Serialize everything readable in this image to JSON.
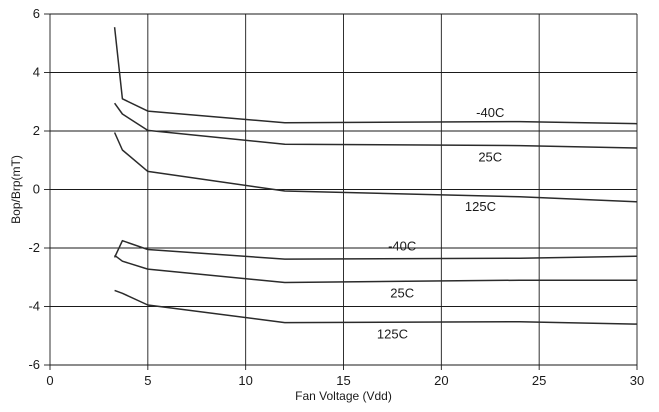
{
  "chart_data": {
    "type": "line",
    "title": "",
    "xlabel": "Fan Voltage (Vdd)",
    "ylabel": "Bop/Brp(mT)",
    "xlim": [
      0,
      30
    ],
    "ylim": [
      -6,
      6
    ],
    "x_ticks": [
      0,
      5,
      10,
      15,
      20,
      25,
      30
    ],
    "y_ticks": [
      -6,
      -4,
      -2,
      0,
      2,
      4,
      6
    ],
    "grid": "vertical and horizontal major gridlines",
    "line_color": "#2b2b2b",
    "grid_color": "#1a1a1a",
    "series": [
      {
        "name": "-40C",
        "x": [
          3.3,
          3.7,
          5,
          12,
          24,
          30
        ],
        "y": [
          5.55,
          3.1,
          2.68,
          2.28,
          2.32,
          2.25
        ],
        "label_at": [
          22.5,
          2.62
        ]
      },
      {
        "name": "25C",
        "x": [
          3.3,
          3.7,
          5,
          12,
          24,
          30
        ],
        "y": [
          2.95,
          2.58,
          2.02,
          1.55,
          1.5,
          1.42
        ],
        "label_at": [
          22.5,
          1.1
        ]
      },
      {
        "name": "125C",
        "x": [
          3.3,
          3.7,
          5,
          12,
          24,
          30
        ],
        "y": [
          1.95,
          1.35,
          0.62,
          -0.05,
          -0.25,
          -0.42
        ],
        "label_at": [
          22,
          -0.6
        ]
      },
      {
        "name": "-40C",
        "x": [
          3.3,
          3.7,
          5,
          12,
          24,
          30
        ],
        "y": [
          -2.32,
          -1.75,
          -2.05,
          -2.38,
          -2.35,
          -2.28
        ],
        "label_at": [
          18,
          -1.95
        ]
      },
      {
        "name": "25C",
        "x": [
          3.3,
          3.7,
          5,
          12,
          24,
          30
        ],
        "y": [
          -2.25,
          -2.45,
          -2.72,
          -3.18,
          -3.1,
          -3.1
        ],
        "label_at": [
          18,
          -3.55
        ]
      },
      {
        "name": "125C",
        "x": [
          3.3,
          3.7,
          5,
          12,
          24,
          30
        ],
        "y": [
          -3.45,
          -3.55,
          -3.95,
          -4.55,
          -4.52,
          -4.6
        ],
        "label_at": [
          17.5,
          -4.95
        ]
      }
    ]
  }
}
